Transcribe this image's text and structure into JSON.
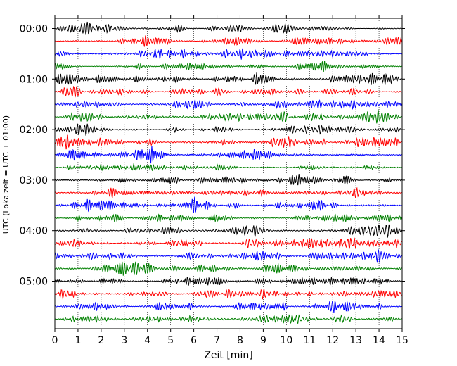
{
  "chart_data": {
    "type": "line",
    "title": "",
    "xlabel": "Zeit  [min]",
    "ylabel": "UTC (Lokalzeit = UTC + 01:00)",
    "xlim": [
      0,
      15
    ],
    "x_ticks": [
      "0",
      "1",
      "2",
      "3",
      "4",
      "5",
      "6",
      "7",
      "8",
      "9",
      "10",
      "11",
      "12",
      "13",
      "14",
      "15"
    ],
    "y_ticks": [
      "00:00",
      "01:00",
      "02:00",
      "03:00",
      "04:00",
      "05:00"
    ],
    "trace_interval_min": 15,
    "trace_count": 24,
    "trace_colors": [
      "#000000",
      "#ff0000",
      "#0000ff",
      "#008000"
    ],
    "grid": "vertical dotted",
    "legend": "none"
  }
}
